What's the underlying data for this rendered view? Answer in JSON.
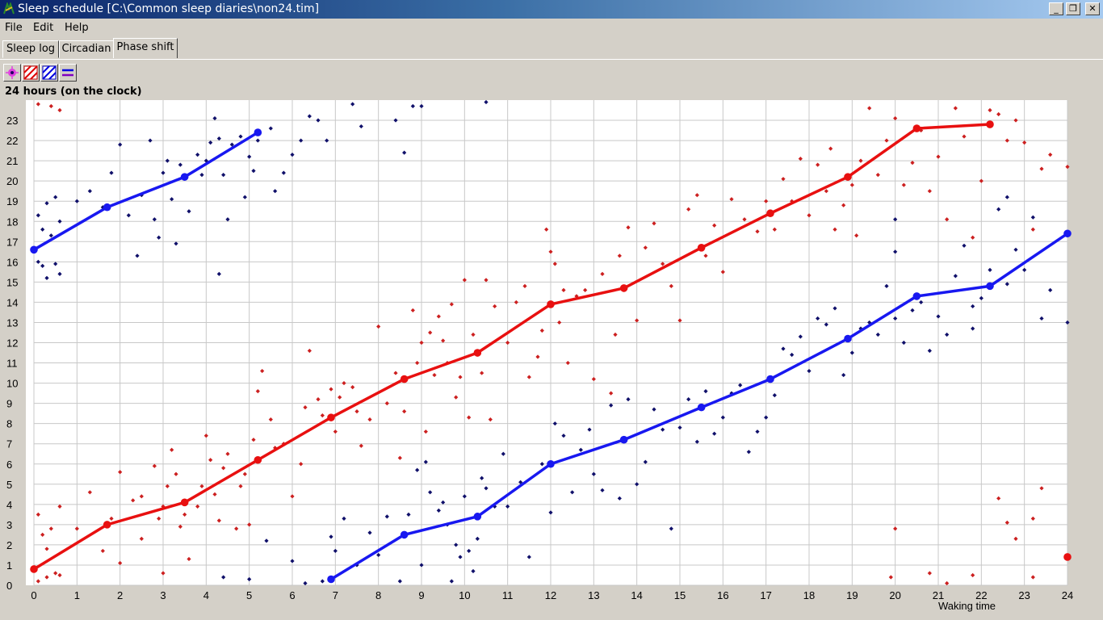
{
  "window": {
    "title": "Sleep schedule [C:\\Common sleep diaries\\non24.tim]",
    "buttons": {
      "minimize": "_",
      "restore": "❐",
      "close": "✕"
    }
  },
  "menu": [
    "File",
    "Edit",
    "Help"
  ],
  "tabs": [
    {
      "label": "Sleep log",
      "active": false
    },
    {
      "label": "Circadian",
      "active": false
    },
    {
      "label": "Phase shift",
      "active": true
    }
  ],
  "toolbar": {
    "icons": [
      "points-icon",
      "red-hatch-icon",
      "blue-hatch-icon",
      "lines-icon"
    ]
  },
  "chart_data": {
    "type": "scatter",
    "title": "24 hours (on the clock)",
    "xlabel": "Waking time",
    "ylabel": "",
    "xlim": [
      0,
      24
    ],
    "ylim": [
      0,
      24
    ],
    "x_ticks": [
      "0",
      "1",
      "2",
      "3",
      "4",
      "5",
      "6",
      "7",
      "8",
      "9",
      "10",
      "11",
      "12",
      "13",
      "14",
      "15",
      "16",
      "17",
      "18",
      "19",
      "20",
      "21",
      "22",
      "23",
      "24"
    ],
    "y_ticks": [
      "0",
      "1",
      "2",
      "3",
      "4",
      "5",
      "6",
      "7",
      "8",
      "9",
      "10",
      "11",
      "12",
      "13",
      "14",
      "15",
      "16",
      "17",
      "18",
      "19",
      "20",
      "21",
      "22",
      "23"
    ],
    "grid": true,
    "colors": {
      "red": "#e81010",
      "blue": "#1818f0",
      "red_dots": "#cc2020",
      "navy_dots": "#10106a"
    },
    "red_line": [
      [
        0,
        0.8
      ],
      [
        1.7,
        3.0
      ],
      [
        3.5,
        4.1
      ],
      [
        5.2,
        6.2
      ],
      [
        6.9,
        8.3
      ],
      [
        8.6,
        10.2
      ],
      [
        10.3,
        11.5
      ],
      [
        12.0,
        13.9
      ],
      [
        13.7,
        14.7
      ],
      [
        15.5,
        16.7
      ],
      [
        17.1,
        18.4
      ],
      [
        18.9,
        20.2
      ],
      [
        20.5,
        22.6
      ],
      [
        22.2,
        22.8
      ]
    ],
    "red_isolated": [
      [
        24,
        1.4
      ]
    ],
    "blue_line_1": [
      [
        0,
        16.6
      ],
      [
        1.7,
        18.7
      ],
      [
        3.5,
        20.2
      ],
      [
        5.2,
        22.4
      ]
    ],
    "blue_line_2": [
      [
        6.9,
        0.3
      ],
      [
        8.6,
        2.5
      ],
      [
        10.3,
        3.4
      ],
      [
        12.0,
        6.0
      ],
      [
        13.7,
        7.2
      ],
      [
        15.5,
        8.8
      ],
      [
        17.1,
        10.2
      ],
      [
        18.9,
        12.2
      ],
      [
        20.5,
        14.3
      ],
      [
        22.2,
        14.8
      ],
      [
        24,
        17.4
      ]
    ],
    "red_dots": [
      [
        0.1,
        3.5
      ],
      [
        0.2,
        2.5
      ],
      [
        0.3,
        1.8
      ],
      [
        0.4,
        2.8
      ],
      [
        0.6,
        3.9
      ],
      [
        0.1,
        0.2
      ],
      [
        0.3,
        0.4
      ],
      [
        0.5,
        0.6
      ],
      [
        0.6,
        0.5
      ],
      [
        0.1,
        23.8
      ],
      [
        0.4,
        23.7
      ],
      [
        0.6,
        23.5
      ],
      [
        1.0,
        2.8
      ],
      [
        1.3,
        4.6
      ],
      [
        1.6,
        1.7
      ],
      [
        1.8,
        3.3
      ],
      [
        2.0,
        5.6
      ],
      [
        2.0,
        1.1
      ],
      [
        2.3,
        4.2
      ],
      [
        2.5,
        4.4
      ],
      [
        2.5,
        2.3
      ],
      [
        2.8,
        5.9
      ],
      [
        2.9,
        3.3
      ],
      [
        3.0,
        3.9
      ],
      [
        3.0,
        0.6
      ],
      [
        3.1,
        4.9
      ],
      [
        3.2,
        6.7
      ],
      [
        3.3,
        5.5
      ],
      [
        3.4,
        2.9
      ],
      [
        3.5,
        3.5
      ],
      [
        3.6,
        1.3
      ],
      [
        3.8,
        3.9
      ],
      [
        3.9,
        4.9
      ],
      [
        4.0,
        7.4
      ],
      [
        4.1,
        6.2
      ],
      [
        4.2,
        4.5
      ],
      [
        4.3,
        3.2
      ],
      [
        4.4,
        5.8
      ],
      [
        4.5,
        6.5
      ],
      [
        4.7,
        2.8
      ],
      [
        4.8,
        4.9
      ],
      [
        4.9,
        5.5
      ],
      [
        5.0,
        3.0
      ],
      [
        5.1,
        7.2
      ],
      [
        5.2,
        9.6
      ],
      [
        5.3,
        10.6
      ],
      [
        5.5,
        8.2
      ],
      [
        5.6,
        6.8
      ],
      [
        5.8,
        7.0
      ],
      [
        6.0,
        4.4
      ],
      [
        6.2,
        6.0
      ],
      [
        6.3,
        8.8
      ],
      [
        6.4,
        11.6
      ],
      [
        6.6,
        9.2
      ],
      [
        6.7,
        8.4
      ],
      [
        6.9,
        9.7
      ],
      [
        7.0,
        7.6
      ],
      [
        7.1,
        9.3
      ],
      [
        7.2,
        10.0
      ],
      [
        7.4,
        9.8
      ],
      [
        7.5,
        8.6
      ],
      [
        7.6,
        6.9
      ],
      [
        7.8,
        8.2
      ],
      [
        8.0,
        12.8
      ],
      [
        8.2,
        9.0
      ],
      [
        8.4,
        10.5
      ],
      [
        8.5,
        6.3
      ],
      [
        8.6,
        8.6
      ],
      [
        8.8,
        13.6
      ],
      [
        8.9,
        11.0
      ],
      [
        9.0,
        12.0
      ],
      [
        9.1,
        7.6
      ],
      [
        9.2,
        12.5
      ],
      [
        9.3,
        10.4
      ],
      [
        9.4,
        13.3
      ],
      [
        9.5,
        12.1
      ],
      [
        9.6,
        11.0
      ],
      [
        9.7,
        13.9
      ],
      [
        9.8,
        9.3
      ],
      [
        9.9,
        10.3
      ],
      [
        10.0,
        15.1
      ],
      [
        10.1,
        8.3
      ],
      [
        10.2,
        12.4
      ],
      [
        10.4,
        10.5
      ],
      [
        10.5,
        15.1
      ],
      [
        10.6,
        8.2
      ],
      [
        10.7,
        13.8
      ],
      [
        11.0,
        12.0
      ],
      [
        11.2,
        14.0
      ],
      [
        11.4,
        14.8
      ],
      [
        11.5,
        10.3
      ],
      [
        11.7,
        11.3
      ],
      [
        11.8,
        12.6
      ],
      [
        11.9,
        17.6
      ],
      [
        12.0,
        16.5
      ],
      [
        12.1,
        15.9
      ],
      [
        12.2,
        13.0
      ],
      [
        12.3,
        14.6
      ],
      [
        12.4,
        11.0
      ],
      [
        12.6,
        14.3
      ],
      [
        12.8,
        14.6
      ],
      [
        13.0,
        10.2
      ],
      [
        13.2,
        15.4
      ],
      [
        13.4,
        9.5
      ],
      [
        13.5,
        12.4
      ],
      [
        13.6,
        16.3
      ],
      [
        13.8,
        17.7
      ],
      [
        14.0,
        13.1
      ],
      [
        14.2,
        16.7
      ],
      [
        14.4,
        17.9
      ],
      [
        14.6,
        15.9
      ],
      [
        14.8,
        14.8
      ],
      [
        15.0,
        13.1
      ],
      [
        15.2,
        18.6
      ],
      [
        15.4,
        19.3
      ],
      [
        15.6,
        16.3
      ],
      [
        15.8,
        17.8
      ],
      [
        16.0,
        15.5
      ],
      [
        16.2,
        19.1
      ],
      [
        16.5,
        18.1
      ],
      [
        16.8,
        17.5
      ],
      [
        17.0,
        19.0
      ],
      [
        17.2,
        17.6
      ],
      [
        17.4,
        20.1
      ],
      [
        17.6,
        19.0
      ],
      [
        17.8,
        21.1
      ],
      [
        18.0,
        18.3
      ],
      [
        18.2,
        20.8
      ],
      [
        18.4,
        19.5
      ],
      [
        18.5,
        21.6
      ],
      [
        18.6,
        17.6
      ],
      [
        18.8,
        18.8
      ],
      [
        19.0,
        19.8
      ],
      [
        19.1,
        17.3
      ],
      [
        19.2,
        21.0
      ],
      [
        19.4,
        23.6
      ],
      [
        19.6,
        20.3
      ],
      [
        19.8,
        22.0
      ],
      [
        20.0,
        23.1
      ],
      [
        20.2,
        19.8
      ],
      [
        20.4,
        20.9
      ],
      [
        20.6,
        22.5
      ],
      [
        20.8,
        19.5
      ],
      [
        21.0,
        21.2
      ],
      [
        21.2,
        18.1
      ],
      [
        21.4,
        23.6
      ],
      [
        21.6,
        22.2
      ],
      [
        21.8,
        17.2
      ],
      [
        22.0,
        20.0
      ],
      [
        22.2,
        23.5
      ],
      [
        22.4,
        23.3
      ],
      [
        22.6,
        22.0
      ],
      [
        22.8,
        23.0
      ],
      [
        23.0,
        21.9
      ],
      [
        23.2,
        17.6
      ],
      [
        23.4,
        20.6
      ],
      [
        23.6,
        21.3
      ],
      [
        19.9,
        0.4
      ],
      [
        20.0,
        2.8
      ],
      [
        20.8,
        0.6
      ],
      [
        21.2,
        0.1
      ],
      [
        21.8,
        0.5
      ],
      [
        22.4,
        4.3
      ],
      [
        22.6,
        3.1
      ],
      [
        22.8,
        2.3
      ],
      [
        23.2,
        3.3
      ],
      [
        23.4,
        4.8
      ],
      [
        23.2,
        0.4
      ],
      [
        24.0,
        20.7
      ]
    ],
    "navy_dots": [
      [
        0.1,
        18.3
      ],
      [
        0.2,
        17.6
      ],
      [
        0.3,
        18.9
      ],
      [
        0.4,
        17.3
      ],
      [
        0.5,
        19.2
      ],
      [
        0.6,
        18.0
      ],
      [
        0.1,
        16.0
      ],
      [
        0.2,
        15.8
      ],
      [
        0.3,
        15.2
      ],
      [
        0.5,
        15.9
      ],
      [
        0.6,
        15.4
      ],
      [
        1.0,
        19.0
      ],
      [
        1.3,
        19.5
      ],
      [
        1.6,
        18.7
      ],
      [
        1.8,
        20.4
      ],
      [
        2.0,
        21.8
      ],
      [
        2.2,
        18.3
      ],
      [
        2.4,
        16.3
      ],
      [
        2.5,
        19.3
      ],
      [
        2.7,
        22.0
      ],
      [
        2.8,
        18.1
      ],
      [
        2.9,
        17.2
      ],
      [
        3.0,
        20.4
      ],
      [
        3.1,
        21.0
      ],
      [
        3.2,
        19.1
      ],
      [
        3.3,
        16.9
      ],
      [
        3.4,
        20.8
      ],
      [
        3.6,
        18.5
      ],
      [
        3.8,
        21.3
      ],
      [
        3.9,
        20.3
      ],
      [
        4.0,
        21.0
      ],
      [
        4.1,
        21.9
      ],
      [
        4.2,
        23.1
      ],
      [
        4.3,
        22.1
      ],
      [
        4.4,
        20.3
      ],
      [
        4.5,
        18.1
      ],
      [
        4.6,
        21.8
      ],
      [
        4.8,
        22.2
      ],
      [
        4.9,
        19.2
      ],
      [
        5.0,
        21.2
      ],
      [
        5.1,
        20.5
      ],
      [
        5.2,
        22.0
      ],
      [
        5.5,
        22.6
      ],
      [
        5.6,
        19.5
      ],
      [
        5.8,
        20.4
      ],
      [
        6.0,
        21.3
      ],
      [
        6.2,
        22.0
      ],
      [
        6.4,
        23.2
      ],
      [
        6.6,
        23.0
      ],
      [
        6.8,
        22.0
      ],
      [
        7.4,
        23.8
      ],
      [
        7.6,
        22.7
      ],
      [
        8.4,
        23.0
      ],
      [
        8.6,
        21.4
      ],
      [
        8.8,
        23.7
      ],
      [
        9.0,
        23.7
      ],
      [
        10.5,
        23.9
      ],
      [
        4.3,
        15.4
      ],
      [
        4.4,
        0.4
      ],
      [
        5.0,
        0.3
      ],
      [
        5.4,
        2.2
      ],
      [
        6.0,
        1.2
      ],
      [
        6.3,
        0.1
      ],
      [
        6.7,
        0.2
      ],
      [
        6.9,
        2.4
      ],
      [
        7.0,
        1.7
      ],
      [
        7.2,
        3.3
      ],
      [
        7.5,
        1.0
      ],
      [
        7.8,
        2.6
      ],
      [
        8.0,
        1.5
      ],
      [
        8.2,
        3.4
      ],
      [
        8.5,
        0.2
      ],
      [
        8.7,
        3.5
      ],
      [
        8.9,
        5.7
      ],
      [
        9.0,
        1.0
      ],
      [
        9.1,
        6.1
      ],
      [
        9.2,
        4.6
      ],
      [
        9.4,
        3.7
      ],
      [
        9.5,
        4.1
      ],
      [
        9.6,
        3.0
      ],
      [
        9.7,
        0.2
      ],
      [
        9.8,
        2.0
      ],
      [
        9.9,
        1.4
      ],
      [
        10.0,
        4.4
      ],
      [
        10.1,
        1.7
      ],
      [
        10.2,
        0.7
      ],
      [
        10.3,
        2.3
      ],
      [
        10.4,
        5.3
      ],
      [
        10.5,
        4.8
      ],
      [
        10.7,
        3.9
      ],
      [
        10.9,
        6.5
      ],
      [
        11.0,
        3.9
      ],
      [
        11.3,
        5.1
      ],
      [
        11.5,
        1.4
      ],
      [
        11.8,
        6.0
      ],
      [
        12.0,
        3.6
      ],
      [
        12.1,
        8.0
      ],
      [
        12.3,
        7.4
      ],
      [
        12.5,
        4.6
      ],
      [
        12.7,
        6.7
      ],
      [
        12.9,
        7.7
      ],
      [
        13.0,
        5.5
      ],
      [
        13.2,
        4.7
      ],
      [
        13.4,
        8.9
      ],
      [
        13.6,
        4.3
      ],
      [
        13.8,
        9.2
      ],
      [
        14.0,
        5.0
      ],
      [
        14.2,
        6.1
      ],
      [
        14.4,
        8.7
      ],
      [
        14.6,
        7.7
      ],
      [
        14.8,
        2.8
      ],
      [
        15.0,
        7.8
      ],
      [
        15.2,
        9.2
      ],
      [
        15.4,
        7.1
      ],
      [
        15.6,
        9.6
      ],
      [
        15.8,
        7.5
      ],
      [
        16.0,
        8.3
      ],
      [
        16.2,
        9.5
      ],
      [
        16.4,
        9.9
      ],
      [
        16.6,
        6.6
      ],
      [
        16.8,
        7.6
      ],
      [
        17.0,
        8.3
      ],
      [
        17.2,
        9.4
      ],
      [
        17.4,
        11.7
      ],
      [
        17.6,
        11.4
      ],
      [
        17.8,
        12.3
      ],
      [
        18.0,
        10.6
      ],
      [
        18.2,
        13.2
      ],
      [
        18.4,
        12.9
      ],
      [
        18.6,
        13.7
      ],
      [
        18.8,
        10.4
      ],
      [
        19.0,
        11.5
      ],
      [
        19.2,
        12.7
      ],
      [
        19.4,
        13.0
      ],
      [
        19.6,
        12.4
      ],
      [
        19.8,
        14.8
      ],
      [
        20.0,
        13.2
      ],
      [
        20.2,
        12.0
      ],
      [
        20.4,
        13.6
      ],
      [
        20.6,
        14.0
      ],
      [
        20.8,
        11.6
      ],
      [
        21.0,
        13.3
      ],
      [
        21.2,
        12.4
      ],
      [
        21.4,
        15.3
      ],
      [
        21.6,
        16.8
      ],
      [
        21.8,
        12.7
      ],
      [
        22.0,
        14.2
      ],
      [
        22.2,
        15.6
      ],
      [
        22.4,
        18.6
      ],
      [
        22.6,
        14.9
      ],
      [
        22.8,
        16.6
      ],
      [
        23.0,
        15.6
      ],
      [
        23.2,
        18.2
      ],
      [
        23.4,
        13.2
      ],
      [
        23.6,
        14.6
      ],
      [
        24.0,
        13.0
      ],
      [
        20.0,
        16.5
      ],
      [
        20.0,
        18.1
      ],
      [
        21.8,
        13.8
      ],
      [
        22.6,
        19.2
      ]
    ]
  }
}
